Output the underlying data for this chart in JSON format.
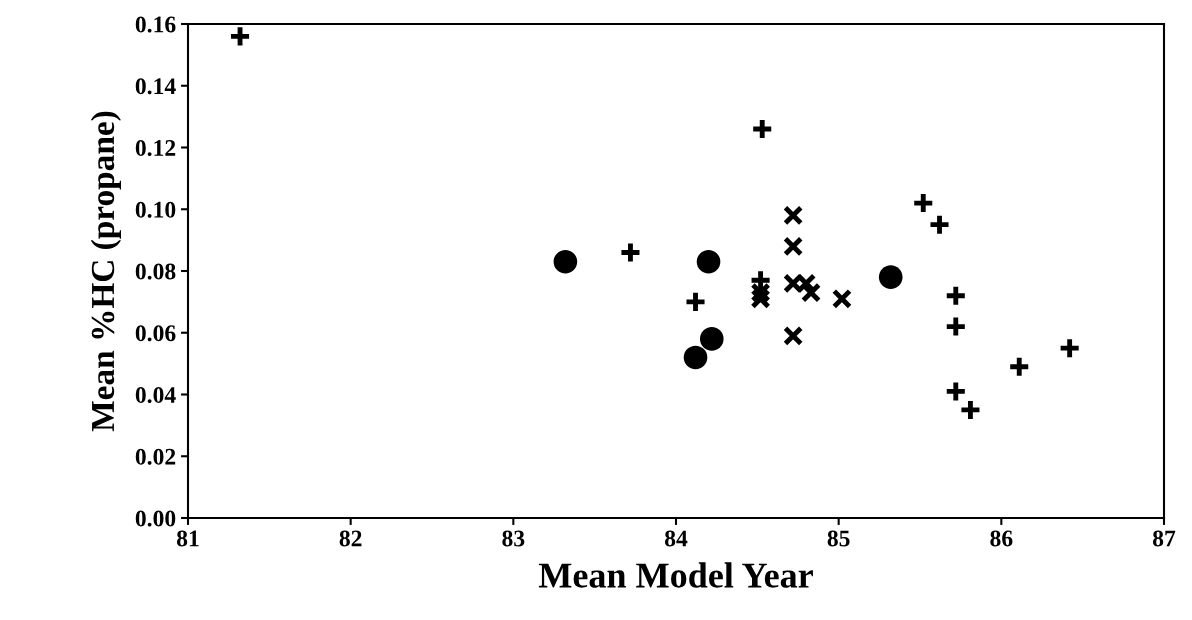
{
  "chart_data": {
    "type": "scatter",
    "xlabel": "Mean Model Year",
    "ylabel": "Mean %HC (propane)",
    "xlim": [
      81,
      87
    ],
    "xticks": [
      81,
      82,
      83,
      84,
      85,
      86,
      87
    ],
    "ylim": [
      0,
      0.16
    ],
    "yticks": [
      {
        "value": 0,
        "label": "0.00"
      },
      {
        "value": 0.02,
        "label": "0.02"
      },
      {
        "value": 0.04,
        "label": "0.04"
      },
      {
        "value": 0.06,
        "label": "0.06"
      },
      {
        "value": 0.08,
        "label": "0.08"
      },
      {
        "value": 0.1,
        "label": "0.10"
      },
      {
        "value": 0.12,
        "label": "0.12"
      },
      {
        "value": 0.14,
        "label": "0.14"
      },
      {
        "value": 0.16,
        "label": "0.16"
      }
    ],
    "grid": false,
    "legend": false,
    "series": [
      {
        "color": "#000000",
        "marker": "plus",
        "x": [
          81.32,
          83.72,
          84.12,
          84.53,
          84.52,
          85.52,
          85.62,
          85.72,
          85.72,
          85.72,
          85.81,
          86.11,
          86.42
        ],
        "values": [
          0.156,
          0.086,
          0.07,
          0.126,
          0.077,
          0.102,
          0.095,
          0.072,
          0.062,
          0.041,
          0.035,
          0.049,
          0.055
        ]
      },
      {
        "color": "#000000",
        "marker": "cross",
        "x": [
          84.72,
          84.72,
          84.72,
          84.8,
          84.83,
          85.02,
          84.72,
          84.52,
          84.52
        ],
        "values": [
          0.098,
          0.088,
          0.076,
          0.076,
          0.073,
          0.071,
          0.059,
          0.073,
          0.071
        ]
      },
      {
        "color": "#000000",
        "marker": "circle",
        "x": [
          83.32,
          84.2,
          84.22,
          84.12,
          85.32
        ],
        "values": [
          0.083,
          0.083,
          0.058,
          0.052,
          0.078
        ]
      }
    ]
  }
}
